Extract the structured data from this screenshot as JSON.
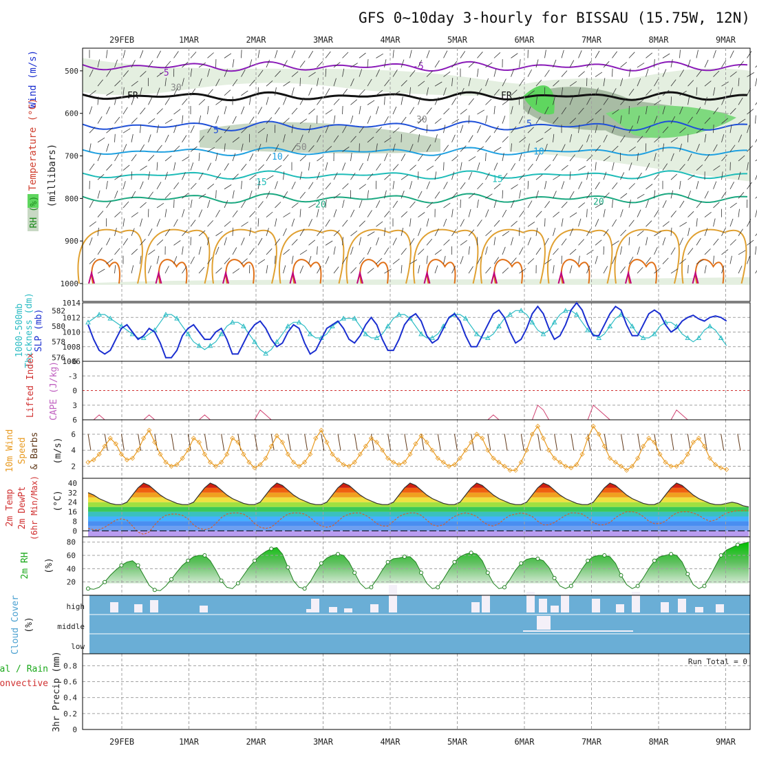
{
  "title": "GFS 0~10day 3-hourly for BISSAU (15.75W, 12N)",
  "dates": [
    "29FEB",
    "1MAR",
    "2MAR",
    "3MAR",
    "4MAR",
    "5MAR",
    "6MAR",
    "7MAR",
    "8MAR",
    "9MAR"
  ],
  "colors": {
    "frame": "#000000",
    "grid": "#a0a0a0",
    "rh_light": "#e4efe0",
    "rh_mid": "#c8d8c4",
    "rh_dark": "#a8bca4",
    "rh_green": "#5fd65f",
    "temp_minus5": "#8a1ab8",
    "temp_fr": "#111111",
    "temp_5": "#1e4fd8",
    "temp_10": "#1ea0e0",
    "temp_15": "#1ebcb8",
    "temp_20": "#1aa880",
    "temp_25": "#e0a030",
    "temp_30": "#e07018",
    "temp_35": "#c0007a",
    "slp": "#1a2ed0",
    "thickness": "#2cbcc4",
    "cape": "#d04070",
    "wind_speed": "#e89a20",
    "barb": "#603818",
    "dewpoint": "#d06030",
    "rh2m": "#1aa81a",
    "cloud": "#6aaed6",
    "cloud_white": "#f4f0f8"
  },
  "panels": [
    {
      "id": "upper_air",
      "labels": [
        {
          "text": "Wind (m/s)",
          "color": "#1a2ed0"
        },
        {
          "text": "Temperature (°C)",
          "color": "#d04030"
        },
        {
          "text": "RH (%)",
          "color": "#1a8a1a"
        }
      ],
      "unit": "(millibars)",
      "ticks": [
        "500",
        "600",
        "700",
        "800",
        "900",
        "1000"
      ],
      "contour_labels": [
        "-5",
        "-5",
        "FR",
        "FR",
        "5",
        "5",
        "10",
        "10",
        "15",
        "15",
        "20",
        "20",
        "30",
        "30",
        "50"
      ]
    },
    {
      "id": "slp_thickness",
      "labels": [
        {
          "text": "1000-500mb",
          "color": "#2cbcc4"
        },
        {
          "text": "Thickness (dm)",
          "color": "#2cbcc4"
        },
        {
          "text": "SLP (mb)",
          "color": "#1a2ed0"
        }
      ],
      "ticks_left": [
        "582",
        "580",
        "578",
        "576"
      ],
      "ticks_right": [
        "1014",
        "1012",
        "1010",
        "1008",
        "1006"
      ]
    },
    {
      "id": "stability",
      "labels": [
        {
          "text": "Lifted Index",
          "color": "#d03030"
        },
        {
          "text": "CAPE (J/kg)",
          "color": "#c060c0"
        }
      ],
      "ticks": [
        "-6",
        "-3",
        "0",
        "3",
        "6"
      ]
    },
    {
      "id": "wind10m",
      "labels": [
        {
          "text": "10m Wind",
          "color": "#e89a20"
        },
        {
          "text": "Speed",
          "color": "#e89a20"
        },
        {
          "text": "& Barbs",
          "color": "#603818"
        }
      ],
      "unit": "(m/s)",
      "ticks": [
        "6",
        "4",
        "2"
      ]
    },
    {
      "id": "temp2m",
      "labels": [
        {
          "text": "2m Temp",
          "color": "#d03030"
        },
        {
          "text": "2m DewPt",
          "color": "#d03030"
        },
        {
          "text": "(6hr Min/Max)",
          "color": "#d03030"
        }
      ],
      "unit": "(°C)",
      "ticks": [
        "40",
        "32",
        "24",
        "16",
        "8",
        "0"
      ]
    },
    {
      "id": "rh2m",
      "labels": [
        {
          "text": "2m RH",
          "color": "#1aa81a"
        }
      ],
      "unit": "(%)",
      "ticks": [
        "80",
        "60",
        "40",
        "20"
      ]
    },
    {
      "id": "cloud",
      "labels": [
        {
          "text": "Cloud Cover",
          "color": "#4aa0d0"
        }
      ],
      "unit": "(%)",
      "levels": [
        "high",
        "middle",
        "low"
      ]
    },
    {
      "id": "precip",
      "labels": [
        {
          "text": "Total / Rain",
          "color": "#1aa81a"
        },
        {
          "text": "Convective",
          "color": "#d03030"
        },
        {
          "text": "3hr Precip (mm)",
          "color": "#222222"
        }
      ],
      "ticks": [
        "0.8",
        "0.6",
        "0.4",
        "0.2",
        "0"
      ],
      "run_total": "Run Total = 0"
    }
  ],
  "chart_data": [
    {
      "type": "line",
      "title": "2m Temperature (°C)",
      "x_unit": "forecast step (3-hourly)",
      "ylim": [
        -5,
        42
      ],
      "series": [
        {
          "name": "2m Temp",
          "values": [
            32,
            30,
            27,
            25,
            23,
            22,
            22,
            24,
            30,
            36,
            40,
            38,
            34,
            30,
            27,
            25,
            23,
            22,
            22,
            24,
            30,
            36,
            40,
            38,
            34,
            30,
            27,
            25,
            23,
            22,
            22,
            24,
            30,
            36,
            40,
            38,
            34,
            30,
            27,
            25,
            23,
            22,
            22,
            24,
            30,
            36,
            40,
            38,
            34,
            30,
            27,
            25,
            23,
            22,
            22,
            24,
            30,
            36,
            40,
            38,
            34,
            30,
            27,
            25,
            23,
            22,
            22,
            24,
            30,
            36,
            40,
            38,
            34,
            30,
            27,
            25,
            23,
            22,
            22,
            24,
            30,
            36,
            40,
            38,
            34,
            30,
            27,
            25,
            23,
            22,
            22,
            24,
            30,
            36,
            40,
            38,
            34,
            30,
            27,
            25,
            23,
            22,
            22,
            24,
            30,
            36,
            40,
            38,
            34,
            30,
            27,
            25,
            23,
            22,
            22,
            23,
            24,
            23,
            21,
            20
          ]
        },
        {
          "name": "2m DewPt",
          "values": [
            2,
            1,
            1,
            3,
            6,
            9,
            10,
            9,
            4,
            -1,
            -3,
            -1,
            5,
            10,
            13,
            14,
            14,
            13,
            10,
            5,
            2,
            1,
            2,
            6,
            11,
            14,
            15,
            15,
            14,
            11,
            6,
            3,
            2,
            3,
            7,
            11,
            14,
            15,
            15,
            14,
            11,
            7,
            4,
            3,
            4,
            8,
            12,
            14,
            15,
            15,
            13,
            10,
            6,
            4,
            4,
            8,
            12,
            14,
            15,
            15,
            13,
            9,
            5,
            4,
            5,
            9,
            12,
            14,
            15,
            14,
            12,
            8,
            5,
            4,
            6,
            10,
            13,
            14,
            15,
            14,
            12,
            8,
            5,
            5,
            7,
            10,
            13,
            15,
            15,
            14,
            11,
            7,
            5,
            5,
            7,
            11,
            14,
            16,
            16,
            15,
            12,
            8,
            6,
            6,
            8,
            12,
            15,
            16,
            16,
            15,
            13,
            10,
            8,
            9,
            12,
            15,
            16,
            17,
            17,
            17
          ]
        }
      ]
    },
    {
      "type": "line",
      "title": "2m RH (%)",
      "x_unit": "forecast step (3-hourly)",
      "ylim": [
        0,
        85
      ],
      "series": [
        {
          "name": "2m RH",
          "values": [
            10,
            9,
            12,
            20,
            30,
            38,
            45,
            50,
            52,
            45,
            30,
            15,
            8,
            7,
            14,
            24,
            35,
            45,
            52,
            58,
            60,
            60,
            52,
            38,
            22,
            12,
            10,
            18,
            30,
            42,
            52,
            60,
            66,
            70,
            72,
            62,
            42,
            22,
            12,
            10,
            20,
            35,
            48,
            56,
            60,
            62,
            60,
            50,
            34,
            18,
            10,
            12,
            24,
            38,
            50,
            55,
            56,
            58,
            58,
            50,
            34,
            18,
            10,
            12,
            24,
            38,
            50,
            58,
            62,
            64,
            62,
            52,
            34,
            18,
            10,
            12,
            24,
            38,
            48,
            54,
            56,
            55,
            52,
            42,
            26,
            14,
            10,
            14,
            26,
            40,
            52,
            58,
            60,
            60,
            58,
            48,
            30,
            16,
            10,
            14,
            26,
            40,
            52,
            58,
            60,
            62,
            60,
            50,
            32,
            16,
            10,
            14,
            28,
            44,
            60,
            68,
            72,
            76,
            78,
            80
          ]
        }
      ]
    },
    {
      "type": "line",
      "title": "SLP (mb)",
      "x_unit": "forecast step (3-hourly)",
      "ylim": [
        1006,
        1014
      ],
      "series": [
        {
          "name": "SLP",
          "values": [
            1011,
            1009,
            1007.5,
            1007,
            1007.5,
            1009,
            1010.5,
            1011,
            1010,
            1009,
            1009.5,
            1010.5,
            1010,
            1008.5,
            1006.5,
            1006.5,
            1007.5,
            1009.5,
            1010.5,
            1011,
            1010,
            1009,
            1009,
            1010,
            1010.5,
            1009,
            1007,
            1007,
            1008.5,
            1010,
            1011,
            1011.5,
            1010.5,
            1009,
            1008,
            1008.5,
            1010,
            1011,
            1010.5,
            1008.5,
            1007,
            1007.5,
            1009,
            1010.5,
            1011,
            1011.5,
            1010.5,
            1009,
            1008.5,
            1009.5,
            1011,
            1012,
            1011,
            1009,
            1007.5,
            1007.5,
            1009,
            1011,
            1012,
            1012.5,
            1011.5,
            1009.5,
            1008.5,
            1009,
            1010.5,
            1012,
            1012.5,
            1011.5,
            1009.5,
            1008,
            1008,
            1009.5,
            1011,
            1012.5,
            1013,
            1012,
            1010,
            1008.5,
            1009,
            1010.5,
            1012.5,
            1013.5,
            1012.5,
            1010.5,
            1009,
            1009.5,
            1011,
            1013,
            1014,
            1013,
            1011,
            1009.5,
            1009.5,
            1011,
            1012.5,
            1013.5,
            1013,
            1011,
            1009.5,
            1009.5,
            1011,
            1012.5,
            1013,
            1012.5,
            1011,
            1010,
            1010.5,
            1011.5,
            1012,
            1012.3,
            1011.8,
            1011.5,
            1012,
            1012.2,
            1012,
            1011.5
          ]
        },
        {
          "name": "1000-500mb Thickness",
          "values": [
            580.5,
            581,
            581.5,
            581.5,
            581,
            580.5,
            580,
            579.5,
            579,
            578.5,
            578.5,
            579,
            579.5,
            580.5,
            581.5,
            581.5,
            581,
            580,
            579,
            578,
            577.5,
            577,
            577.5,
            578,
            579,
            580,
            580.5,
            580.5,
            580,
            579,
            578,
            577,
            576.5,
            577,
            578,
            579,
            580,
            580.5,
            580.5,
            580,
            579,
            578.5,
            578.5,
            579,
            580,
            580.5,
            581,
            581,
            581,
            580,
            579,
            578.5,
            578.5,
            579,
            580,
            581,
            581.5,
            581.5,
            581,
            580,
            579,
            578.5,
            578.5,
            579,
            580,
            581,
            581.5,
            581.5,
            581,
            580,
            579,
            578.5,
            578.5,
            579,
            580,
            581,
            581.5,
            582,
            582,
            581.5,
            580.5,
            579.5,
            579,
            579.5,
            580.5,
            581.5,
            582,
            582,
            581.5,
            580.5,
            579.5,
            579,
            578.5,
            579,
            580,
            581,
            581.5,
            581,
            580,
            579,
            578.5,
            578.5,
            579,
            580,
            580.5,
            580.5,
            580,
            579,
            578.5,
            578,
            578.5,
            579.5,
            580,
            579.5,
            578.5,
            577.5
          ]
        }
      ]
    },
    {
      "type": "line",
      "title": "10m Wind Speed (m/s)",
      "x_unit": "forecast step (3-hourly)",
      "ylim": [
        0,
        8
      ],
      "series": [
        {
          "name": "10m Wind Speed",
          "values": [
            2.5,
            2.8,
            3.5,
            4.5,
            5.5,
            4.8,
            3.5,
            2.8,
            3,
            4,
            5.5,
            6.5,
            5,
            3.5,
            2.5,
            2,
            2.2,
            3,
            4,
            5.5,
            5,
            3.5,
            2.5,
            2,
            2.5,
            3.5,
            5.5,
            5,
            3.5,
            2.5,
            1.8,
            2.2,
            3,
            4.5,
            5.8,
            5,
            3.5,
            2.5,
            2,
            2.5,
            3.5,
            5.5,
            6.5,
            5,
            3.5,
            2.8,
            2.2,
            2,
            2.5,
            3.5,
            4.5,
            5.5,
            5,
            4,
            3,
            2.5,
            2.2,
            2.5,
            3.5,
            4.8,
            5.8,
            5,
            4,
            3,
            2.5,
            2,
            2.2,
            3,
            4,
            5,
            6,
            5.5,
            4,
            3,
            2.5,
            2,
            1.5,
            1.5,
            2.5,
            4,
            6,
            7,
            5.5,
            4,
            3,
            2.5,
            2,
            1.8,
            2.2,
            3.5,
            5.5,
            7,
            6,
            4.5,
            3,
            2.5,
            2,
            1.5,
            2,
            3,
            4.5,
            5.5,
            5,
            3.5,
            2.5,
            2,
            2,
            2.5,
            3.5,
            5,
            5.5,
            4.5,
            3,
            2.2,
            1.8,
            1.6
          ]
        }
      ]
    },
    {
      "type": "line",
      "title": "Lifted Index / CAPE",
      "x_unit": "forecast step (3-hourly)",
      "ylim": [
        -6,
        6
      ],
      "series": [
        {
          "name": "Lifted Index",
          "values": [
            6,
            6,
            5,
            6,
            6,
            6,
            6,
            6,
            6,
            6,
            6,
            5,
            6,
            6,
            6,
            6,
            6,
            6,
            6,
            6,
            6,
            5,
            6,
            6,
            6,
            6,
            6,
            6,
            6,
            6,
            6,
            4,
            5,
            6,
            6,
            6,
            6,
            6,
            6,
            6,
            6,
            6,
            6,
            6,
            6,
            6,
            6,
            6,
            6,
            6,
            6,
            6,
            6,
            6,
            6,
            6,
            6,
            6,
            6,
            6,
            6,
            6,
            6,
            6,
            6,
            6,
            6,
            6,
            6,
            6,
            6,
            6,
            6,
            5,
            6,
            6,
            6,
            6,
            6,
            6,
            6,
            3,
            4,
            6,
            6,
            6,
            6,
            6,
            6,
            6,
            6,
            3,
            4,
            5,
            6,
            6,
            6,
            6,
            6,
            6,
            6,
            6,
            6,
            6,
            6,
            6,
            4,
            5,
            6,
            6,
            6,
            6,
            6,
            6,
            6,
            6,
            6,
            6,
            6,
            6
          ]
        }
      ]
    }
  ]
}
